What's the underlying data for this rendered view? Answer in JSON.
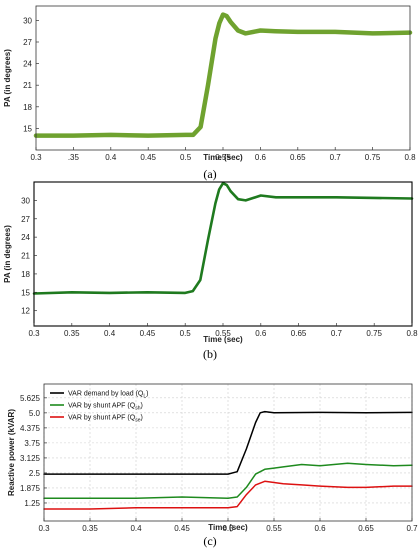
{
  "chart_data": [
    {
      "id": "a",
      "type": "line",
      "caption": "(a)",
      "xlabel": "Time (sec)",
      "ylabel": "PA (in degrees)",
      "xlim": [
        0.3,
        0.8
      ],
      "ylim": [
        12,
        32
      ],
      "xticks": [
        0.3,
        0.35,
        0.4,
        0.45,
        0.5,
        0.55,
        0.6,
        0.65,
        0.7,
        0.75,
        0.8
      ],
      "xtick_labels": [
        "0.3",
        ".35",
        "0.4",
        "0.45",
        "0.5",
        "0.55",
        "0.6",
        "0.65",
        "0.7",
        "0.75",
        "0.8"
      ],
      "yticks": [
        15,
        18,
        21,
        24,
        27,
        30
      ],
      "ytick_labels": [
        "15",
        "18",
        "21",
        "24",
        "27",
        "30"
      ],
      "grid": false,
      "series": [
        {
          "color": "#6fa22f",
          "x": [
            0.3,
            0.35,
            0.4,
            0.45,
            0.5,
            0.51,
            0.52,
            0.53,
            0.54,
            0.545,
            0.55,
            0.555,
            0.56,
            0.57,
            0.58,
            0.6,
            0.62,
            0.65,
            0.7,
            0.75,
            0.8
          ],
          "y": [
            14.0,
            14.0,
            14.1,
            14.0,
            14.1,
            14.1,
            15.2,
            21.0,
            27.5,
            29.6,
            30.8,
            30.6,
            29.8,
            28.6,
            28.2,
            28.6,
            28.5,
            28.4,
            28.4,
            28.2,
            28.3
          ]
        }
      ]
    },
    {
      "id": "b",
      "type": "line",
      "caption": "(b)",
      "xlabel": "Time (sec)",
      "ylabel": "PA (in degrees)",
      "xlim": [
        0.3,
        0.8
      ],
      "ylim": [
        9.5,
        33
      ],
      "xticks": [
        0.3,
        0.35,
        0.4,
        0.45,
        0.5,
        0.55,
        0.6,
        0.65,
        0.7,
        0.75,
        0.8
      ],
      "xtick_labels": [
        "0.3",
        "0.35",
        "0.4",
        "0.45",
        "0.5",
        "0.55",
        "0.6",
        "0.65",
        "0.7",
        "0.75",
        "0.8"
      ],
      "yticks": [
        12,
        15,
        18,
        21,
        24,
        27,
        30
      ],
      "ytick_labels": [
        "12",
        "15",
        "18",
        "21",
        "24",
        "27",
        "30"
      ],
      "grid": false,
      "series": [
        {
          "color": "#1f7a1f",
          "x": [
            0.3,
            0.35,
            0.4,
            0.45,
            0.5,
            0.51,
            0.52,
            0.53,
            0.54,
            0.545,
            0.55,
            0.555,
            0.56,
            0.57,
            0.58,
            0.6,
            0.62,
            0.65,
            0.7,
            0.75,
            0.8
          ],
          "y": [
            14.8,
            15.0,
            14.9,
            15.0,
            14.9,
            15.2,
            17.0,
            23.5,
            29.5,
            31.8,
            32.8,
            32.5,
            31.5,
            30.2,
            30.0,
            30.8,
            30.5,
            30.5,
            30.5,
            30.4,
            30.3
          ]
        }
      ]
    },
    {
      "id": "c",
      "type": "line",
      "caption": "(c)",
      "xlabel": "Time (sec)",
      "ylabel": "Reactive power (kVAR)",
      "xlim": [
        0.3,
        0.7
      ],
      "ylim": [
        0.5,
        6.2
      ],
      "xticks": [
        0.3,
        0.35,
        0.4,
        0.45,
        0.5,
        0.55,
        0.6,
        0.65,
        0.7
      ],
      "xtick_labels": [
        "0.3",
        "0.35",
        "0.4",
        "0.45",
        "0.5",
        "0.55",
        "0.6",
        "0.65",
        "0.7"
      ],
      "yticks": [
        1.25,
        1.875,
        2.5,
        3.125,
        3.75,
        4.375,
        5.0,
        5.625
      ],
      "ytick_labels": [
        "1.25",
        "1.875",
        "2.5",
        "3.125",
        "3.75",
        "4.375",
        "5.0",
        "5.625"
      ],
      "grid": true,
      "legend": "top-left",
      "series": [
        {
          "name": "VAR demand by load (QL)",
          "name_main": "VAR demand by load (Q",
          "name_sub": "L",
          "color": "#000000",
          "x": [
            0.3,
            0.35,
            0.4,
            0.45,
            0.5,
            0.51,
            0.52,
            0.53,
            0.535,
            0.54,
            0.55,
            0.6,
            0.65,
            0.7
          ],
          "y": [
            2.45,
            2.45,
            2.45,
            2.45,
            2.45,
            2.55,
            3.5,
            4.6,
            5.0,
            5.05,
            5.0,
            5.02,
            5.0,
            5.02
          ]
        },
        {
          "name": "VAR by shunt APF (Qsh)",
          "name_main": "VAR by shunt APF (Q",
          "name_sub": "sh",
          "color": "#1e8a1e",
          "x": [
            0.3,
            0.35,
            0.4,
            0.45,
            0.5,
            0.51,
            0.52,
            0.53,
            0.54,
            0.55,
            0.56,
            0.58,
            0.6,
            0.63,
            0.65,
            0.68,
            0.7
          ],
          "y": [
            1.45,
            1.45,
            1.45,
            1.5,
            1.45,
            1.5,
            1.9,
            2.45,
            2.65,
            2.7,
            2.75,
            2.85,
            2.8,
            2.9,
            2.85,
            2.8,
            2.82
          ]
        },
        {
          "name": "VAR by shunt APF (Qse)",
          "name_main": "VAR by shunt APF (Q",
          "name_sub": "se",
          "color": "#dd1111",
          "x": [
            0.3,
            0.35,
            0.4,
            0.45,
            0.5,
            0.51,
            0.52,
            0.53,
            0.54,
            0.55,
            0.56,
            0.58,
            0.6,
            0.63,
            0.65,
            0.68,
            0.7
          ],
          "y": [
            1.0,
            1.0,
            1.05,
            1.05,
            1.05,
            1.1,
            1.6,
            2.0,
            2.15,
            2.1,
            2.05,
            2.0,
            1.95,
            1.9,
            1.9,
            1.95,
            1.95
          ]
        }
      ]
    }
  ]
}
